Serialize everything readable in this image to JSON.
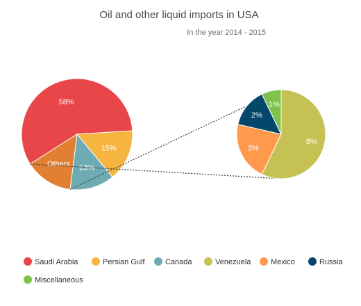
{
  "chart_data": {
    "type": "pie",
    "title": "Oil and other liquid imports in USA",
    "subtitle": "In the year 2014 - 2015",
    "main_pie": {
      "slices": [
        {
          "name": "Saudi Arabia",
          "value": 58,
          "label": "58%",
          "color": "#e94649"
        },
        {
          "name": "Persian Gulf",
          "value": 15,
          "label": "15%",
          "color": "#f6b53f"
        },
        {
          "name": "Canada",
          "value": 13,
          "label": "13%",
          "color": "#6fabb3"
        },
        {
          "name": "Others",
          "value": 14,
          "label": "Others",
          "color": "#e17f32"
        }
      ]
    },
    "others_pie": {
      "slices": [
        {
          "name": "Venezuela",
          "value": 8,
          "label": "8%",
          "color": "#c5c253"
        },
        {
          "name": "Mexico",
          "value": 3,
          "label": "3%",
          "color": "#ff9a4d"
        },
        {
          "name": "Russia",
          "value": 2,
          "label": "2%",
          "color": "#03486b"
        },
        {
          "name": "Miscellaneous",
          "value": 1,
          "label": "1%",
          "color": "#7fc24b"
        }
      ]
    },
    "legend": [
      {
        "name": "Saudi Arabia",
        "color": "#e94649"
      },
      {
        "name": "Persian Gulf",
        "color": "#f6b53f"
      },
      {
        "name": "Canada",
        "color": "#6fabb3"
      },
      {
        "name": "Venezuela",
        "color": "#c5c253"
      },
      {
        "name": "Mexico",
        "color": "#ff9a4d"
      },
      {
        "name": "Russia",
        "color": "#03486b"
      },
      {
        "name": "Miscellaneous",
        "color": "#7fc24b"
      }
    ],
    "legend_position": "bottom"
  }
}
